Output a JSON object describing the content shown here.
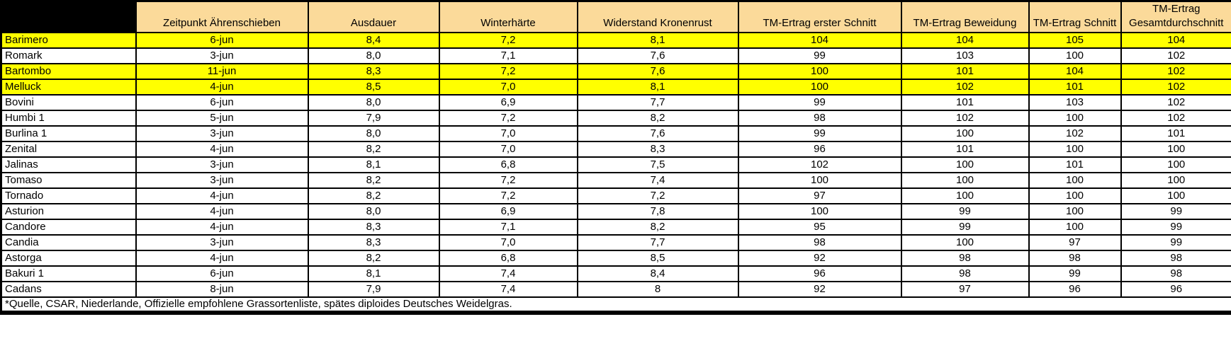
{
  "table": {
    "columns": [
      "Zeitpunkt Ährenschieben",
      "Ausdauer",
      "Winterhärte",
      "Widerstand Kronenrust",
      "TM-Ertrag erster Schnitt",
      "TM-Ertrag Beweidung",
      "TM-Ertrag Schnitt",
      "TM-Ertrag Gesamtdurchschnitt"
    ],
    "rows": [
      {
        "name": "Barimero",
        "highlighted": true,
        "values": [
          "6-jun",
          "8,4",
          "7,2",
          "8,1",
          "104",
          "104",
          "105",
          "104"
        ]
      },
      {
        "name": "Romark",
        "highlighted": false,
        "values": [
          "3-jun",
          "8,0",
          "7,1",
          "7,6",
          "99",
          "103",
          "100",
          "102"
        ]
      },
      {
        "name": "Bartombo",
        "highlighted": true,
        "values": [
          "11-jun",
          "8,3",
          "7,2",
          "7,6",
          "100",
          "101",
          "104",
          "102"
        ]
      },
      {
        "name": "Melluck",
        "highlighted": true,
        "values": [
          "4-jun",
          "8,5",
          "7,0",
          "8,1",
          "100",
          "102",
          "101",
          "102"
        ]
      },
      {
        "name": "Bovini",
        "highlighted": false,
        "values": [
          "6-jun",
          "8,0",
          "6,9",
          "7,7",
          "99",
          "101",
          "103",
          "102"
        ]
      },
      {
        "name": "Humbi 1",
        "highlighted": false,
        "values": [
          "5-jun",
          "7,9",
          "7,2",
          "8,2",
          "98",
          "102",
          "100",
          "102"
        ]
      },
      {
        "name": "Burlina 1",
        "highlighted": false,
        "values": [
          "3-jun",
          "8,0",
          "7,0",
          "7,6",
          "99",
          "100",
          "102",
          "101"
        ]
      },
      {
        "name": "Zenital",
        "highlighted": false,
        "values": [
          "4-jun",
          "8,2",
          "7,0",
          "8,3",
          "96",
          "101",
          "100",
          "100"
        ]
      },
      {
        "name": "Jalinas",
        "highlighted": false,
        "values": [
          "3-jun",
          "8,1",
          "6,8",
          "7,5",
          "102",
          "100",
          "101",
          "100"
        ]
      },
      {
        "name": "Tomaso",
        "highlighted": false,
        "values": [
          "3-jun",
          "8,2",
          "7,2",
          "7,4",
          "100",
          "100",
          "100",
          "100"
        ]
      },
      {
        "name": "Tornado",
        "highlighted": false,
        "values": [
          "4-jun",
          "8,2",
          "7,2",
          "7,2",
          "97",
          "100",
          "100",
          "100"
        ]
      },
      {
        "name": "Asturion",
        "highlighted": false,
        "values": [
          "4-jun",
          "8,0",
          "6,9",
          "7,8",
          "100",
          "99",
          "100",
          "99"
        ]
      },
      {
        "name": "Candore",
        "highlighted": false,
        "values": [
          "4-jun",
          "8,3",
          "7,1",
          "8,2",
          "95",
          "99",
          "100",
          "99"
        ]
      },
      {
        "name": "Candia",
        "highlighted": false,
        "values": [
          "3-jun",
          "8,3",
          "7,0",
          "7,7",
          "98",
          "100",
          "97",
          "99"
        ]
      },
      {
        "name": "Astorga",
        "highlighted": false,
        "values": [
          "4-jun",
          "8,2",
          "6,8",
          "8,5",
          "92",
          "98",
          "98",
          "98"
        ]
      },
      {
        "name": "Bakuri 1",
        "highlighted": false,
        "values": [
          "6-jun",
          "8,1",
          "7,4",
          "8,4",
          "96",
          "98",
          "99",
          "98"
        ]
      },
      {
        "name": "Cadans",
        "highlighted": false,
        "values": [
          "8-jun",
          "7,9",
          "7,4",
          "8",
          "92",
          "97",
          "96",
          "96"
        ]
      }
    ],
    "footnote": "*Quelle, CSAR, Niederlande, Offizielle empfohlene Grassortenliste, spätes diploides Deutsches Weidelgras."
  },
  "colors": {
    "header_bg": "#FBDA9A",
    "highlight_bg": "#FFFF00",
    "border": "#000000",
    "corner_bg": "#000000",
    "text": "#000000"
  }
}
